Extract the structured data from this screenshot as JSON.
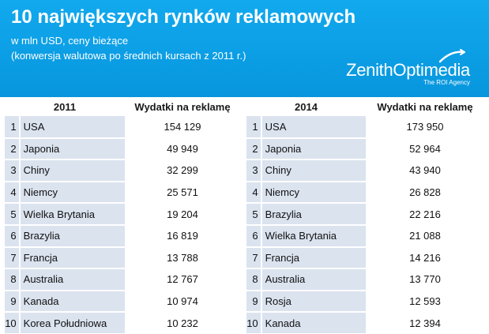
{
  "header": {
    "title": "10 największych rynków reklamowych",
    "subtitle_line1": "w mln USD, ceny bieżące",
    "subtitle_line2": "(konwersja walutowa po średnich kursach z 2011 r.)",
    "logo_name": "ZenithOptimedia",
    "logo_tagline": "The ROI Agency",
    "background_color": "#0a9fe6"
  },
  "chart_data": [
    {
      "type": "table",
      "year_header": "2011",
      "value_header": "Wydatki na reklamę",
      "rows": [
        {
          "rank": "1",
          "country": "USA",
          "value": "154 129"
        },
        {
          "rank": "2",
          "country": "Japonia",
          "value": "49 949"
        },
        {
          "rank": "3",
          "country": "Chiny",
          "value": "32 299"
        },
        {
          "rank": "4",
          "country": "Niemcy",
          "value": "25 571"
        },
        {
          "rank": "5",
          "country": "Wielka Brytania",
          "value": "19 204"
        },
        {
          "rank": "6",
          "country": "Brazylia",
          "value": "16 819"
        },
        {
          "rank": "7",
          "country": "Francja",
          "value": "13 788"
        },
        {
          "rank": "8",
          "country": "Australia",
          "value": "12 767"
        },
        {
          "rank": "9",
          "country": "Kanada",
          "value": "10 974"
        },
        {
          "rank": "10",
          "country": "Korea Południowa",
          "value": "10 232"
        }
      ]
    },
    {
      "type": "table",
      "year_header": "2014",
      "value_header": "Wydatki na reklamę",
      "rows": [
        {
          "rank": "1",
          "country": "USA",
          "value": "173 950"
        },
        {
          "rank": "2",
          "country": "Japonia",
          "value": "52 964"
        },
        {
          "rank": "3",
          "country": "Chiny",
          "value": "43 940"
        },
        {
          "rank": "4",
          "country": "Niemcy",
          "value": "26 828"
        },
        {
          "rank": "5",
          "country": "Brazylia",
          "value": "22 216"
        },
        {
          "rank": "6",
          "country": "Wielka Brytania",
          "value": "21 088"
        },
        {
          "rank": "7",
          "country": "Francja",
          "value": "14 216"
        },
        {
          "rank": "8",
          "country": "Australia",
          "value": "13 770"
        },
        {
          "rank": "9",
          "country": "Rosja",
          "value": "12 593"
        },
        {
          "rank": "10",
          "country": "Kanada",
          "value": "12 394"
        }
      ]
    }
  ]
}
